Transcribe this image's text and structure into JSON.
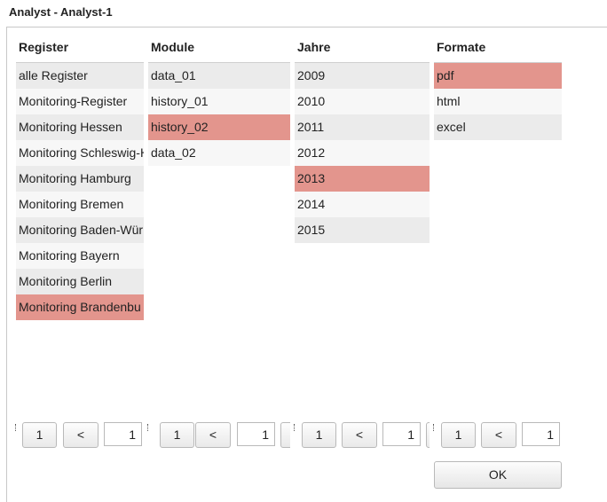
{
  "header": {
    "title": "Analyst - Analyst-1"
  },
  "columns": [
    {
      "header": "Register",
      "items": [
        "alle Register",
        "Monitoring-Register",
        "Monitoring Hessen",
        "Monitoring Schleswig-H",
        "Monitoring Hamburg",
        "Monitoring Bremen",
        "Monitoring Baden-Wür",
        "Monitoring Bayern",
        "Monitoring Berlin",
        "Monitoring Brandenbu"
      ],
      "selected": 9,
      "pager": {
        "first": "1",
        "prev": "<",
        "page": "1"
      }
    },
    {
      "header": "Module",
      "items": [
        "data_01",
        "history_01",
        "history_02",
        "data_02"
      ],
      "selected": 2,
      "pager": {
        "first": "1",
        "prev": "<",
        "page": "1"
      }
    },
    {
      "header": "Jahre",
      "items": [
        "2009",
        "2010",
        "2011",
        "2012",
        "2013",
        "2014",
        "2015"
      ],
      "selected": 4,
      "pager": {
        "first": "1",
        "prev": "<",
        "page": "1"
      }
    },
    {
      "header": "Formate",
      "items": [
        "pdf",
        "html",
        "excel"
      ],
      "selected": 0,
      "pager": {
        "first": "1",
        "prev": "<",
        "page": "1"
      }
    }
  ],
  "ok_button": "OK"
}
